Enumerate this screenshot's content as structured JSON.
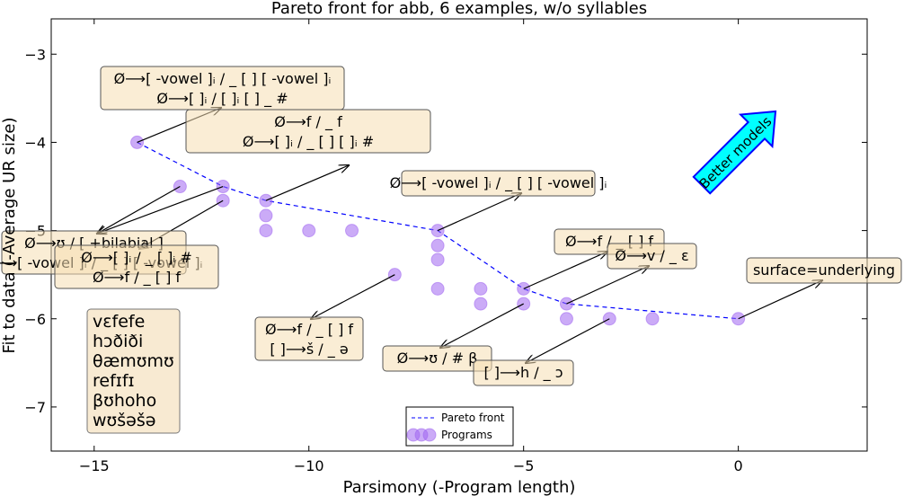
{
  "chart_data": {
    "type": "scatter",
    "title": "Pareto front for abb, 6 examples, w/o syllables",
    "xlabel": "Parsimony (-Program length)",
    "ylabel": "Fit to data (-Average UR size)",
    "xlim": [
      -16,
      3
    ],
    "ylim": [
      -7.5,
      -2.6
    ],
    "xticks": [
      -15,
      -10,
      -5,
      0
    ],
    "yticks": [
      -3,
      -4,
      -5,
      -6,
      -7
    ],
    "xtick_labels": [
      "−15",
      "−10",
      "−5",
      "0"
    ],
    "ytick_labels": [
      "−3",
      "−4",
      "−5",
      "−6",
      "−7"
    ],
    "grid": false,
    "legend": {
      "placement": "bottom-center",
      "entries": [
        {
          "label": "Pareto front",
          "style": "dashed-line",
          "color": "#0000ff"
        },
        {
          "label": "Programs",
          "style": "circle-marker",
          "color": "#9b5de5"
        }
      ]
    },
    "programs": {
      "name": "Programs",
      "color": "#a066f0",
      "points": [
        [
          -14,
          -4.0
        ],
        [
          -13,
          -4.5
        ],
        [
          -12,
          -4.5
        ],
        [
          -12,
          -4.66
        ],
        [
          -11,
          -4.66
        ],
        [
          -11,
          -4.83
        ],
        [
          -11,
          -5.0
        ],
        [
          -10,
          -5.0
        ],
        [
          -9,
          -5.0
        ],
        [
          -8,
          -5.5
        ],
        [
          -7,
          -5.0
        ],
        [
          -7,
          -5.17
        ],
        [
          -7,
          -5.33
        ],
        [
          -7,
          -5.66
        ],
        [
          -6,
          -5.66
        ],
        [
          -6,
          -5.83
        ],
        [
          -5,
          -5.66
        ],
        [
          -5,
          -5.83
        ],
        [
          -4,
          -5.83
        ],
        [
          -4,
          -6.0
        ],
        [
          -3,
          -6.0
        ],
        [
          -2,
          -6.0
        ],
        [
          0,
          -6.0
        ]
      ]
    },
    "pareto_front": {
      "name": "Pareto front",
      "color": "#0000ff",
      "points": [
        [
          -14,
          -4.0
        ],
        [
          -12,
          -4.5
        ],
        [
          -11,
          -4.66
        ],
        [
          -7,
          -5.0
        ],
        [
          -5,
          -5.66
        ],
        [
          -4,
          -5.83
        ],
        [
          0,
          -6.0
        ]
      ]
    },
    "annotations": [
      {
        "lines": [
          "Ø⟶[ -vowel ]ᵢ / _ [  ] [ -vowel ]ᵢ",
          "Ø⟶[  ]ᵢ / [  ]ᵢ [  ] _ #"
        ],
        "point": [
          -14,
          -4.0
        ]
      },
      {
        "lines": [
          "Ø⟶ʊ / [ +bilabial ]",
          "Ø⟶[ -vowel ]ᵢ / _ [  ] [ -vowel ]ᵢ"
        ],
        "point": [
          -13,
          -4.5
        ]
      },
      {
        "lines": [
          "Ø⟶f / _ f",
          "Ø⟶[  ]ᵢ / _ [  ] [  ]ᵢ #"
        ],
        "point": [
          -11,
          -4.66
        ]
      },
      {
        "lines": [
          "Ø⟶ʊ / [ +bilabial ]",
          "Ø⟶[  ]ᵢ / [  ]ᵢ [  ] _ #"
        ],
        "point": [
          -12,
          -4.5
        ]
      },
      {
        "lines": [
          "Ø⟶[  ]ᵢ / _ [  ]ᵢ #",
          "Ø⟶f / _ [  ] f"
        ],
        "point": [
          -12,
          -4.66
        ]
      },
      {
        "lines": [
          "Ø⟶[ -vowel ]ᵢ / _ [  ] [ -vowel ]ᵢ"
        ],
        "point": [
          -7,
          -5.0
        ]
      },
      {
        "lines": [
          "Ø⟶f / _ [  ] f",
          "[  ]⟶š / _ ə"
        ],
        "point": [
          -8,
          -5.5
        ]
      },
      {
        "lines": [
          "Ø⟶f / _ [  ] f"
        ],
        "point": [
          -5,
          -5.66
        ]
      },
      {
        "lines": [
          "Ø⟶v / _ ɛ"
        ],
        "point": [
          -4,
          -5.83
        ]
      },
      {
        "lines": [
          "Ø⟶ʊ / # β"
        ],
        "point": [
          -5,
          -5.83
        ]
      },
      {
        "lines": [
          "[  ]⟶h / _ ɔ"
        ],
        "point": [
          -3,
          -6.0
        ]
      },
      {
        "lines": [
          "surface=underlying"
        ],
        "point": [
          0,
          -6.0
        ]
      }
    ],
    "callout": "Better models",
    "examples": [
      "vɛfefe",
      "hɔðiði",
      "θæmʊmʊ",
      "refɪfɪ",
      "βʊhoho",
      "wʊšəšə"
    ]
  }
}
